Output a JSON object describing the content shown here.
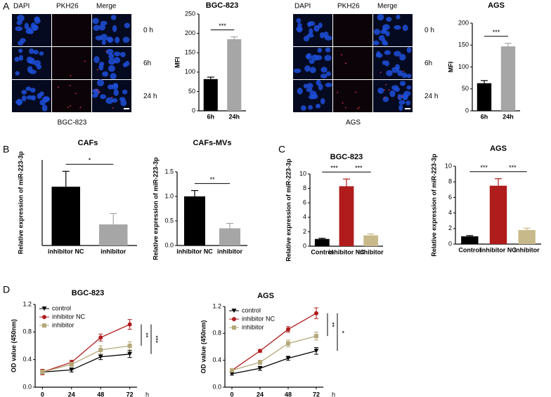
{
  "panel_labels": [
    "A",
    "B",
    "C",
    "D"
  ],
  "micrographs": [
    {
      "columns": [
        "DAPI",
        "PKH26",
        "Merge"
      ],
      "rows": [
        "0 h",
        "6h",
        "24 h"
      ],
      "caption": "BGC-823"
    },
    {
      "columns": [
        "DAPI",
        "PKH26",
        "Merge"
      ],
      "rows": [
        "0 h",
        "6h",
        "24 h"
      ],
      "caption": "AGS"
    }
  ],
  "chart_data": [
    {
      "type": "bar",
      "title": "BGC-823",
      "ylabel": "MFI",
      "categories": [
        "6h",
        "24h"
      ],
      "values": [
        82,
        185
      ],
      "errors": [
        5,
        6
      ],
      "colors": [
        "#000000",
        "#a6a6a6"
      ],
      "ylim": [
        0,
        250
      ],
      "yticks": [
        0,
        50,
        100,
        150,
        200,
        250
      ],
      "significance": [
        "***"
      ]
    },
    {
      "type": "bar",
      "title": "AGS",
      "ylabel": "MFI",
      "categories": [
        "6h",
        "24h"
      ],
      "values": [
        63,
        147
      ],
      "errors": [
        6,
        7
      ],
      "colors": [
        "#000000",
        "#a6a6a6"
      ],
      "ylim": [
        0,
        200
      ],
      "yticks": [
        0,
        50,
        100,
        150,
        200
      ],
      "significance": [
        "***"
      ]
    },
    {
      "type": "bar",
      "title": "CAFs",
      "ylabel": "Relative expression of miR-223-3p",
      "categories": [
        "inhibitor NC",
        "inhibitor"
      ],
      "values": [
        1.03,
        0.37
      ],
      "errors": [
        0.27,
        0.19
      ],
      "colors": [
        "#000000",
        "#a6a6a6"
      ],
      "ylim": [
        0,
        1.5
      ],
      "significance": [
        "*"
      ]
    },
    {
      "type": "bar",
      "title": "CAFs-MVs",
      "ylabel": "Relative expression of miR-223-3p",
      "categories": [
        "inhibitor NC",
        "inhibitor"
      ],
      "values": [
        1.0,
        0.35
      ],
      "errors": [
        0.12,
        0.1
      ],
      "colors": [
        "#000000",
        "#a6a6a6"
      ],
      "ylim": [
        0,
        1.5
      ],
      "yticks": [
        {
          "value": 0,
          "label": "0.0"
        },
        0.5,
        {
          "value": 1,
          "label": "1.0"
        },
        1.5
      ],
      "significance": [
        "**"
      ]
    },
    {
      "type": "bar",
      "title": "BGC-823",
      "ylabel": "Relative expression of miR-223-3p",
      "categories": [
        "Control",
        "inhibitor NC",
        "inhibitor"
      ],
      "values": [
        1.0,
        8.3,
        1.5
      ],
      "errors": [
        0.1,
        1.0,
        0.2
      ],
      "colors": [
        "#000000",
        "#b01c1c",
        "#c8b98a"
      ],
      "ylim": [
        0,
        10
      ],
      "yticks": [
        0,
        2,
        4,
        6,
        8,
        10
      ],
      "significance": [
        "***",
        "***"
      ]
    },
    {
      "type": "bar",
      "title": "AGS",
      "ylabel": "Relative expression of miR-223-3p",
      "categories": [
        "Control",
        "inhibitor NC",
        "inhibitor"
      ],
      "values": [
        1.0,
        7.5,
        1.8
      ],
      "errors": [
        0.1,
        0.9,
        0.25
      ],
      "colors": [
        "#000000",
        "#b01c1c",
        "#c8b98a"
      ],
      "ylim": [
        0,
        10
      ],
      "yticks": [
        0,
        2,
        4,
        6,
        8,
        10
      ],
      "significance": [
        "***",
        "***"
      ]
    },
    {
      "type": "line",
      "title": "BGC-823",
      "ylabel": "OD value (450nm)",
      "xlabel": "h",
      "x": [
        0,
        24,
        48,
        72
      ],
      "xlim": [
        -6,
        78
      ],
      "xticks": [
        0,
        24,
        48,
        72
      ],
      "ylim": [
        0,
        1.2
      ],
      "yticks": [
        {
          "value": 0,
          "label": "0.0"
        },
        0.4,
        0.8,
        1.2
      ],
      "series": [
        {
          "name": "control",
          "color": "#000000",
          "marker": "triangle-down",
          "values": [
            0.22,
            0.25,
            0.44,
            0.48
          ],
          "errors": [
            0.03,
            0.03,
            0.04,
            0.05
          ]
        },
        {
          "name": "inhibitor NC",
          "color": "#b01c1c",
          "marker": "circle",
          "values": [
            0.22,
            0.36,
            0.72,
            0.91
          ],
          "errors": [
            0.04,
            0.03,
            0.05,
            0.07
          ]
        },
        {
          "name": "inhibitor",
          "color": "#b5a878",
          "marker": "square",
          "values": [
            0.22,
            0.33,
            0.54,
            0.6
          ],
          "errors": [
            0.03,
            0.03,
            0.06,
            0.06
          ]
        }
      ],
      "significance": [
        "**",
        "***"
      ]
    },
    {
      "type": "line",
      "title": "AGS",
      "ylabel": "OD value (450nm)",
      "xlabel": "h",
      "x": [
        0,
        24,
        48,
        72
      ],
      "xlim": [
        -6,
        78
      ],
      "xticks": [
        0,
        24,
        48,
        72
      ],
      "ylim": [
        0,
        1.2
      ],
      "yticks": [
        {
          "value": 0,
          "label": "0.0"
        },
        0.4,
        0.8,
        1.2
      ],
      "series": [
        {
          "name": "control",
          "color": "#000000",
          "marker": "triangle-down",
          "values": [
            0.2,
            0.28,
            0.43,
            0.54
          ],
          "errors": [
            0.02,
            0.03,
            0.03,
            0.05
          ]
        },
        {
          "name": "inhibitor NC",
          "color": "#b01c1c",
          "marker": "circle",
          "values": [
            0.25,
            0.54,
            0.86,
            1.1
          ],
          "errors": [
            0.02,
            0.02,
            0.04,
            0.08
          ]
        },
        {
          "name": "inhibitor",
          "color": "#b5a878",
          "marker": "square",
          "values": [
            0.25,
            0.37,
            0.65,
            0.76
          ],
          "errors": [
            0.02,
            0.03,
            0.05,
            0.06
          ]
        }
      ],
      "significance": [
        "**",
        "*"
      ]
    }
  ]
}
